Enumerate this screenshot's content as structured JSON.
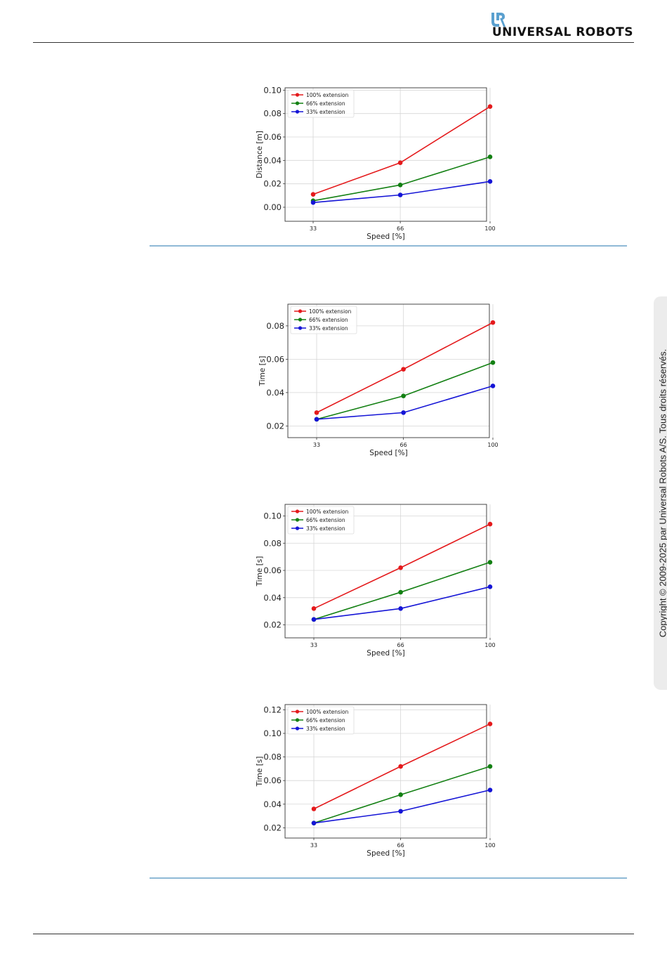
{
  "header": {
    "logo_text": "UNIVERSAL ROBOTS",
    "logo_icon": "ur-logo-icon"
  },
  "sidebar": {
    "copyright": "Copyright © 2009-2025 par Universal Robots A/S. Tous droits réservés."
  },
  "colors": {
    "series_100": "#e41a1c",
    "series_66": "#138013",
    "series_33": "#1515d6",
    "divider_blue": "#8fb9d6"
  },
  "chart_data": [
    {
      "type": "line",
      "xlabel": "Speed [%]",
      "ylabel": "Distance [m]",
      "x": [
        33,
        66,
        100
      ],
      "xticks": [
        "33",
        "66",
        "100"
      ],
      "ylim": [
        -0.012,
        0.102
      ],
      "yticks": [
        0.0,
        0.02,
        0.04,
        0.06,
        0.08,
        0.1
      ],
      "ytick_labels": [
        "0.00",
        "0.02",
        "0.04",
        "0.06",
        "0.08",
        "0.10"
      ],
      "grid": true,
      "legend": "top-left",
      "series": [
        {
          "name": "100% extension",
          "values": [
            0.011,
            0.038,
            0.086
          ]
        },
        {
          "name": "66% extension",
          "values": [
            0.0055,
            0.019,
            0.043
          ]
        },
        {
          "name": "33% extension",
          "values": [
            0.004,
            0.0105,
            0.022
          ]
        }
      ]
    },
    {
      "type": "line",
      "xlabel": "Speed [%]",
      "ylabel": "Time [s]",
      "x": [
        33,
        66,
        100
      ],
      "xticks": [
        "33",
        "66",
        "100"
      ],
      "ylim": [
        0.013,
        0.093
      ],
      "yticks": [
        0.02,
        0.04,
        0.06,
        0.08
      ],
      "ytick_labels": [
        "0.02",
        "0.04",
        "0.06",
        "0.08"
      ],
      "grid": true,
      "legend": "top-left",
      "series": [
        {
          "name": "100% extension",
          "values": [
            0.028,
            0.054,
            0.082
          ]
        },
        {
          "name": "66% extension",
          "values": [
            0.024,
            0.038,
            0.058
          ]
        },
        {
          "name": "33% extension",
          "values": [
            0.024,
            0.028,
            0.044
          ]
        }
      ]
    },
    {
      "type": "line",
      "xlabel": "Speed [%]",
      "ylabel": "Time [s]",
      "x": [
        33,
        66,
        100
      ],
      "xticks": [
        "33",
        "66",
        "100"
      ],
      "ylim": [
        0.0105,
        0.1085
      ],
      "yticks": [
        0.02,
        0.04,
        0.06,
        0.08,
        0.1
      ],
      "ytick_labels": [
        "0.02",
        "0.04",
        "0.06",
        "0.08",
        "0.10"
      ],
      "grid": true,
      "legend": "top-left",
      "series": [
        {
          "name": "100% extension",
          "values": [
            0.032,
            0.062,
            0.094
          ]
        },
        {
          "name": "66% extension",
          "values": [
            0.024,
            0.044,
            0.066
          ]
        },
        {
          "name": "33% extension",
          "values": [
            0.024,
            0.032,
            0.048
          ]
        }
      ]
    },
    {
      "type": "line",
      "xlabel": "Speed [%]",
      "ylabel": "Time [s]",
      "x": [
        33,
        66,
        100
      ],
      "xticks": [
        "33",
        "66",
        "100"
      ],
      "ylim": [
        0.0113,
        0.1244
      ],
      "yticks": [
        0.02,
        0.04,
        0.06,
        0.08,
        0.1,
        0.12
      ],
      "ytick_labels": [
        "0.02",
        "0.04",
        "0.06",
        "0.08",
        "0.10",
        "0.12"
      ],
      "grid": true,
      "legend": "top-left",
      "series": [
        {
          "name": "100% extension",
          "values": [
            0.036,
            0.072,
            0.108
          ]
        },
        {
          "name": "66% extension",
          "values": [
            0.024,
            0.048,
            0.072
          ]
        },
        {
          "name": "33% extension",
          "values": [
            0.024,
            0.034,
            0.052
          ]
        }
      ]
    }
  ]
}
